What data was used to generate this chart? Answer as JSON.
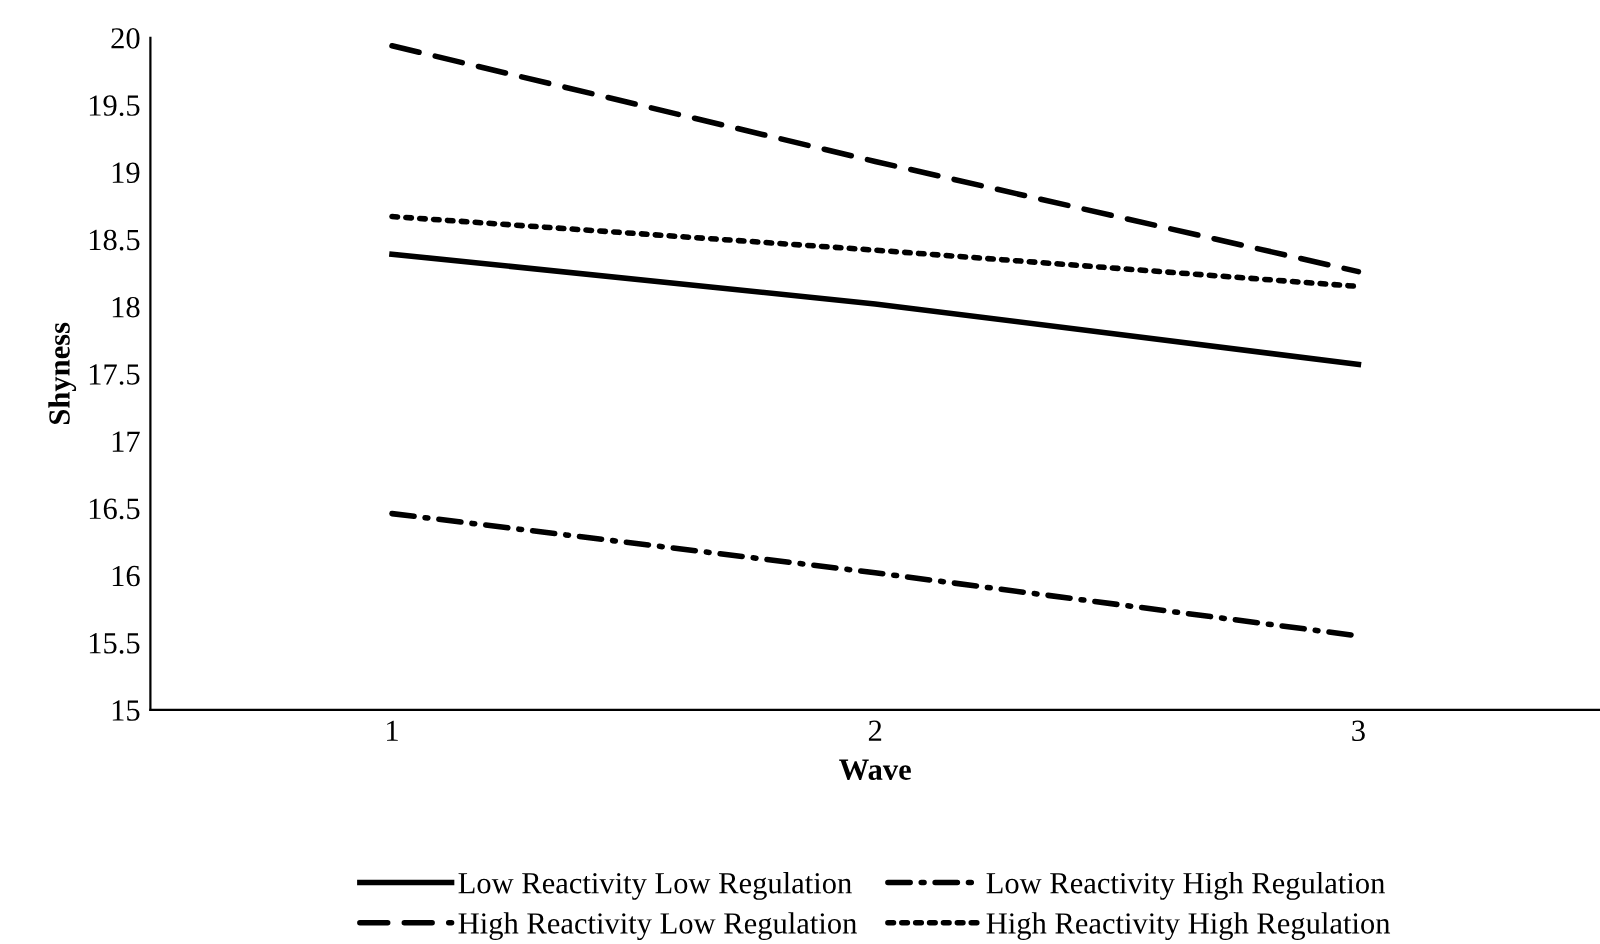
{
  "chart_data": {
    "type": "line",
    "xlabel": "Wave",
    "ylabel": "Shyness",
    "categories": [
      "1",
      "2",
      "3"
    ],
    "ylim": [
      15,
      20
    ],
    "yticks": [
      15,
      15.5,
      16,
      16.5,
      17,
      17.5,
      18,
      18.5,
      19,
      19.5,
      20
    ],
    "grid": false,
    "legend": "bottom",
    "marker": "none",
    "series": [
      {
        "name": "Low Reactivity Low Regulation",
        "color": "#000000",
        "line_style": "solid",
        "values": [
          18.39,
          18.02,
          17.57
        ]
      },
      {
        "name": "Low Reactivity High Regulation",
        "color": "#000000",
        "line_style": "dashdot",
        "values": [
          16.46,
          16.02,
          15.55
        ]
      },
      {
        "name": "High Reactivity Low Regulation",
        "color": "#000000",
        "line_style": "dashed",
        "values": [
          19.94,
          19.08,
          18.26
        ]
      },
      {
        "name": "High Reactivity High Regulation",
        "color": "#000000",
        "line_style": "dotted",
        "values": [
          18.67,
          18.42,
          18.15
        ]
      }
    ]
  }
}
